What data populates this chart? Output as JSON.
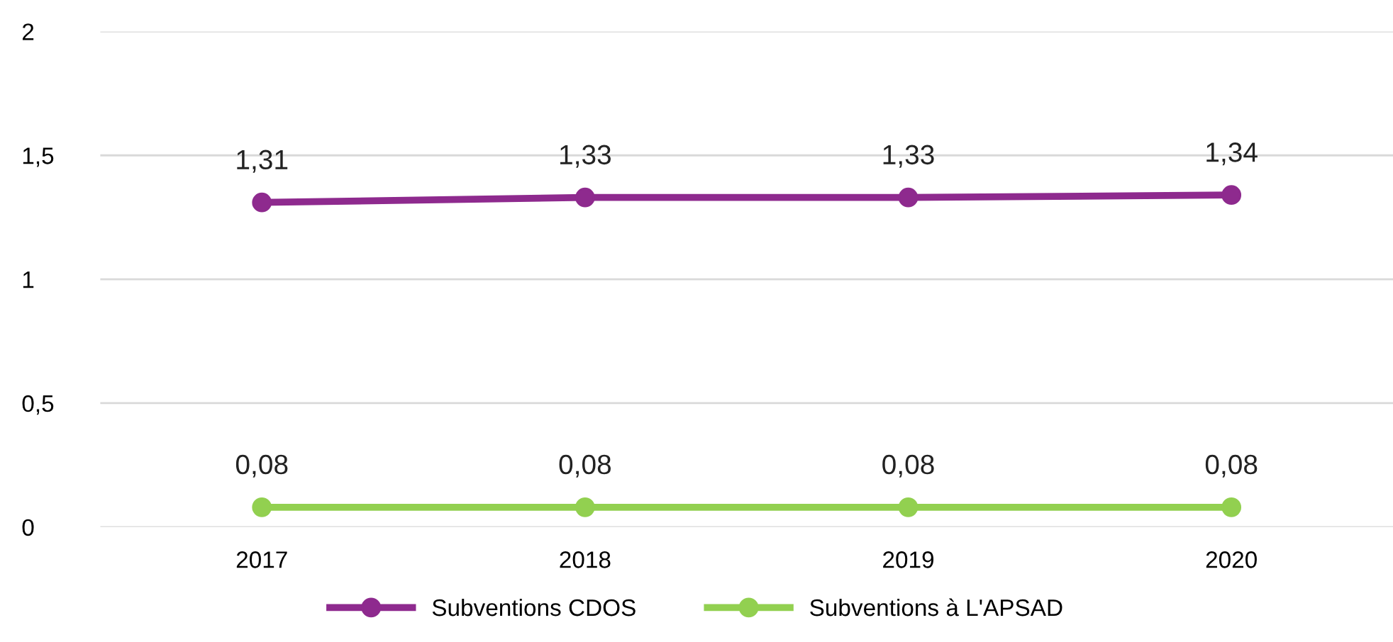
{
  "chart_data": {
    "type": "line",
    "categories": [
      "2017",
      "2018",
      "2019",
      "2020"
    ],
    "series": [
      {
        "name": "Subventions CDOS",
        "color": "#8e2a8e",
        "values": [
          1.31,
          1.33,
          1.33,
          1.34
        ],
        "value_labels": [
          "1,31",
          "1,33",
          "1,33",
          "1,34"
        ]
      },
      {
        "name": "Subventions à L'APSAD",
        "color": "#92d050",
        "values": [
          0.08,
          0.08,
          0.08,
          0.08
        ],
        "value_labels": [
          "0,08",
          "0,08",
          "0,08",
          "0,08"
        ]
      }
    ],
    "ylim": [
      0,
      2
    ],
    "yticks": [
      0,
      {
        "value": 0.5,
        "label": "0,5"
      },
      1,
      {
        "value": 1.5,
        "label": "1,5"
      },
      2
    ],
    "grid": "y",
    "legend": "bottom",
    "marker": "circle",
    "line_style": "solid"
  }
}
